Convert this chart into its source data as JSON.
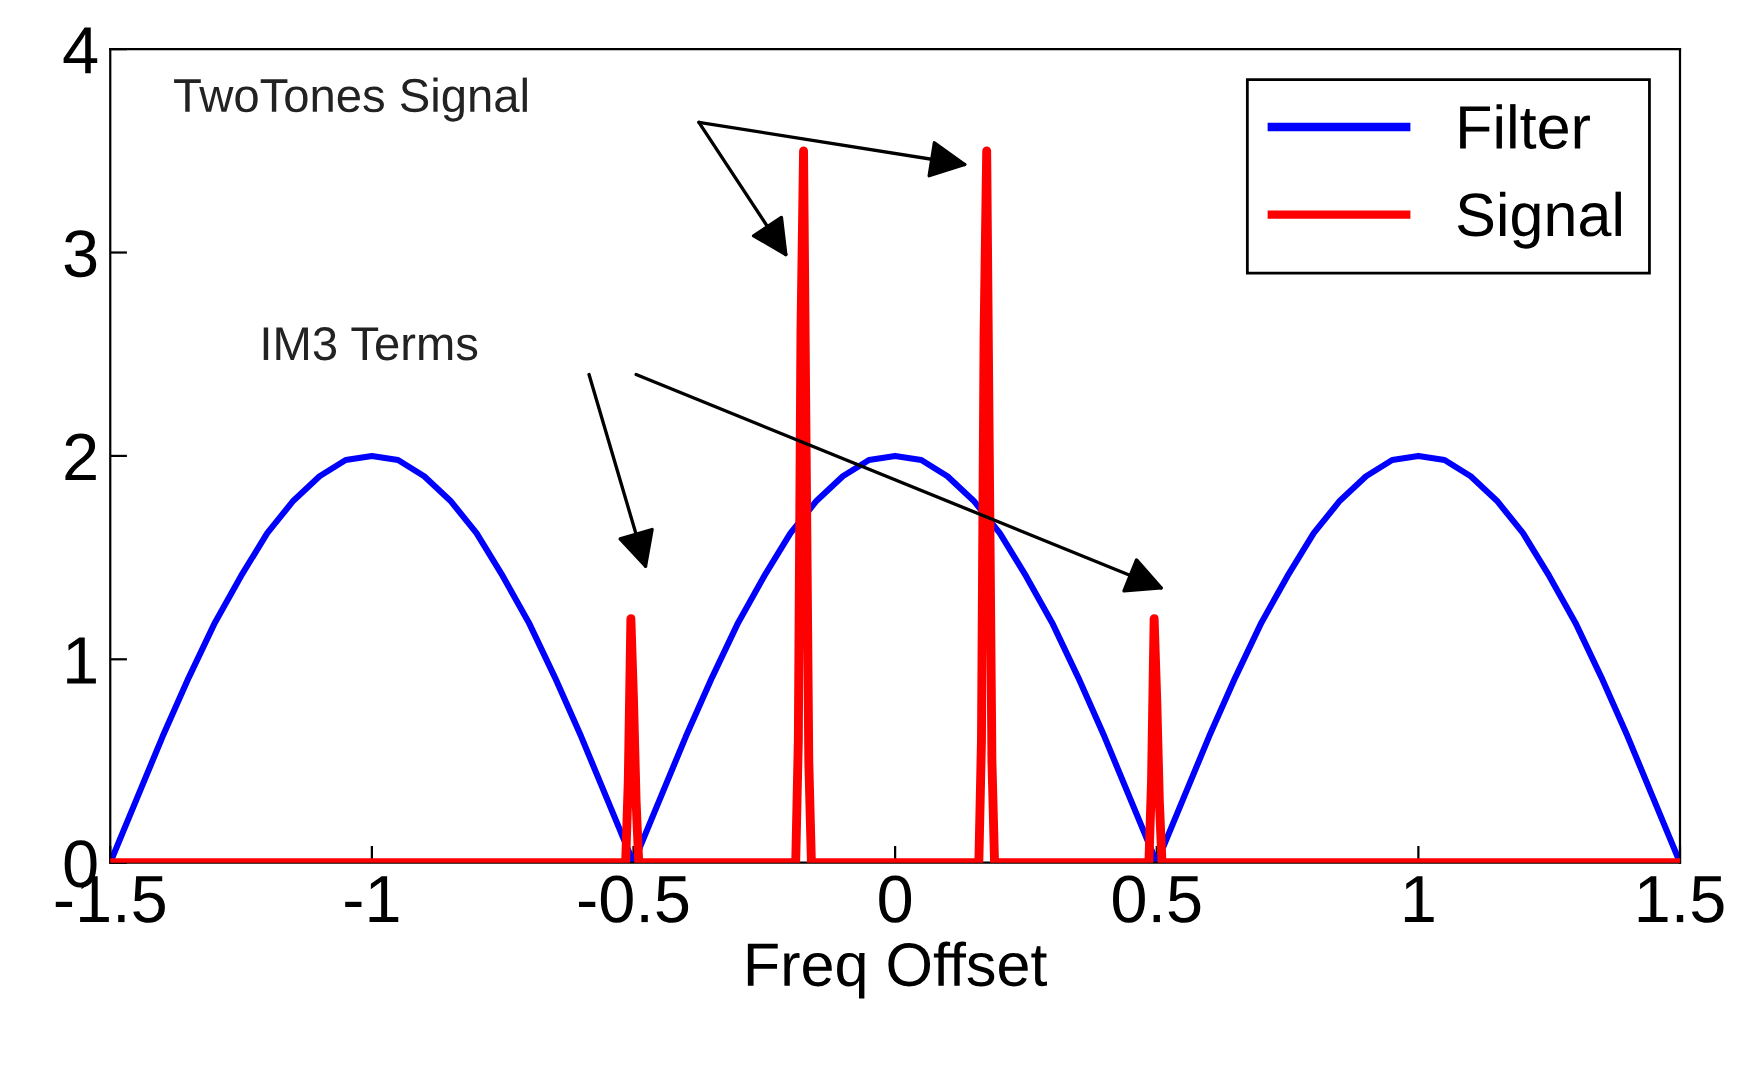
{
  "chart_data": {
    "type": "line",
    "xlabel": "Freq Offset",
    "xlim": [
      -1.5,
      1.5
    ],
    "xticks": [
      -1.5,
      -1,
      -0.5,
      0,
      0.5,
      1,
      1.5
    ],
    "ylim": [
      0,
      4
    ],
    "yticks": [
      0,
      1,
      2,
      3,
      4
    ],
    "grid": false,
    "legend": "top right",
    "marker": "none",
    "line_style": "solid",
    "annotations": [
      "TwoTones Signal",
      "IM3 Terms"
    ],
    "series": [
      {
        "name": "Filter",
        "color": "#0000ff",
        "x": [
          -1.5,
          -1.45,
          -1.4,
          -1.35,
          -1.3,
          -1.25,
          -1.2,
          -1.15,
          -1.1,
          -1.05,
          -1.0,
          -0.95,
          -0.9,
          -0.85,
          -0.8,
          -0.75,
          -0.7,
          -0.65,
          -0.6,
          -0.55,
          -0.5,
          -0.45,
          -0.4,
          -0.35,
          -0.3,
          -0.25,
          -0.2,
          -0.15,
          -0.1,
          -0.05,
          0,
          0.05,
          0.1,
          0.15,
          0.2,
          0.25,
          0.3,
          0.35,
          0.4,
          0.45,
          0.5,
          0.55,
          0.6,
          0.65,
          0.7,
          0.75,
          0.8,
          0.85,
          0.9,
          0.95,
          1.0,
          1.05,
          1.1,
          1.15,
          1.2,
          1.25,
          1.3,
          1.35,
          1.4,
          1.45,
          1.5
        ],
        "values": [
          0,
          0.31,
          0.62,
          0.91,
          1.18,
          1.41,
          1.62,
          1.78,
          1.9,
          1.98,
          2,
          1.98,
          1.9,
          1.78,
          1.62,
          1.41,
          1.18,
          0.91,
          0.62,
          0.31,
          0,
          0.31,
          0.62,
          0.91,
          1.18,
          1.41,
          1.62,
          1.78,
          1.9,
          1.98,
          2,
          1.98,
          1.9,
          1.78,
          1.62,
          1.41,
          1.18,
          0.91,
          0.62,
          0.31,
          0,
          0.31,
          0.62,
          0.91,
          1.18,
          1.41,
          1.62,
          1.78,
          1.9,
          1.98,
          2,
          1.98,
          1.9,
          1.78,
          1.62,
          1.41,
          1.18,
          0.91,
          0.62,
          0.31,
          0
        ]
      },
      {
        "name": "Signal",
        "color": "#ff0000",
        "x": [
          -1.5,
          -0.515,
          -0.51,
          -0.505,
          -0.5,
          -0.495,
          -0.49,
          -0.485,
          -0.19,
          -0.185,
          -0.18,
          -0.175,
          -0.17,
          -0.165,
          -0.16,
          0.16,
          0.165,
          0.17,
          0.175,
          0.18,
          0.185,
          0.19,
          0.485,
          0.49,
          0.495,
          0.5,
          0.505,
          0.51,
          0.515,
          1.5
        ],
        "values": [
          0,
          0,
          0.4,
          1.2,
          0.8,
          0.3,
          0,
          0,
          0,
          0.6,
          2.6,
          3.5,
          2.0,
          0.5,
          0,
          0,
          0.6,
          2.6,
          3.5,
          2.0,
          0.5,
          0,
          0,
          0.4,
          1.2,
          0.8,
          0.3,
          0,
          0,
          0
        ]
      }
    ]
  }
}
